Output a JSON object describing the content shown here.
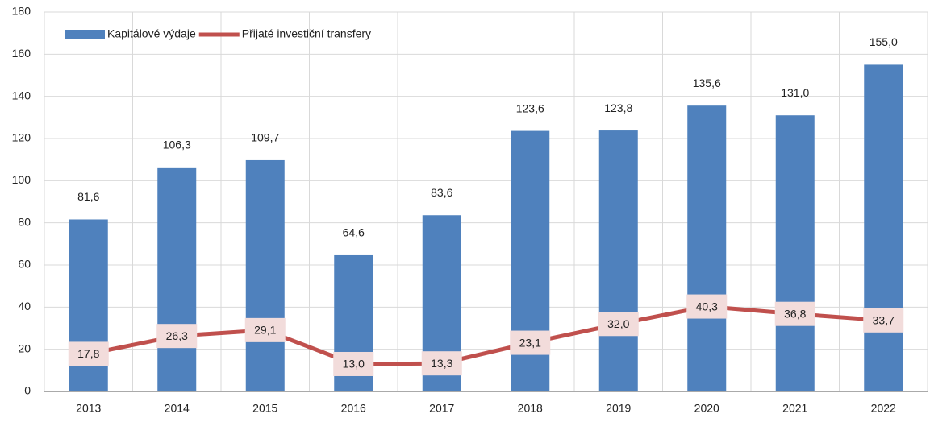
{
  "chart_data": {
    "type": "bar",
    "categories": [
      "2013",
      "2014",
      "2015",
      "2016",
      "2017",
      "2018",
      "2019",
      "2020",
      "2021",
      "2022"
    ],
    "series": [
      {
        "name": "Kapitálové výdaje",
        "type": "bar",
        "color": "#4f81bd",
        "values": [
          81.6,
          106.3,
          109.7,
          64.6,
          83.6,
          123.6,
          123.8,
          135.6,
          131.0,
          155.0
        ],
        "value_labels": [
          "81,6",
          "106,3",
          "109,7",
          "64,6",
          "83,6",
          "123,6",
          "123,8",
          "135,6",
          "131,0",
          "155,0"
        ]
      },
      {
        "name": "Přijaté investiční transfery",
        "type": "line",
        "color": "#c0504d",
        "values": [
          17.8,
          26.3,
          29.1,
          13.0,
          13.3,
          23.1,
          32.0,
          40.3,
          36.8,
          33.7
        ],
        "value_labels": [
          "17,8",
          "26,3",
          "29,1",
          "13,0",
          "13,3",
          "23,1",
          "32,0",
          "40,3",
          "36,8",
          "33,7"
        ]
      }
    ],
    "ylim": [
      0,
      180
    ],
    "yticks": [
      0,
      20,
      40,
      60,
      80,
      100,
      120,
      140,
      160,
      180
    ],
    "grid": true,
    "legend": "upper left"
  }
}
